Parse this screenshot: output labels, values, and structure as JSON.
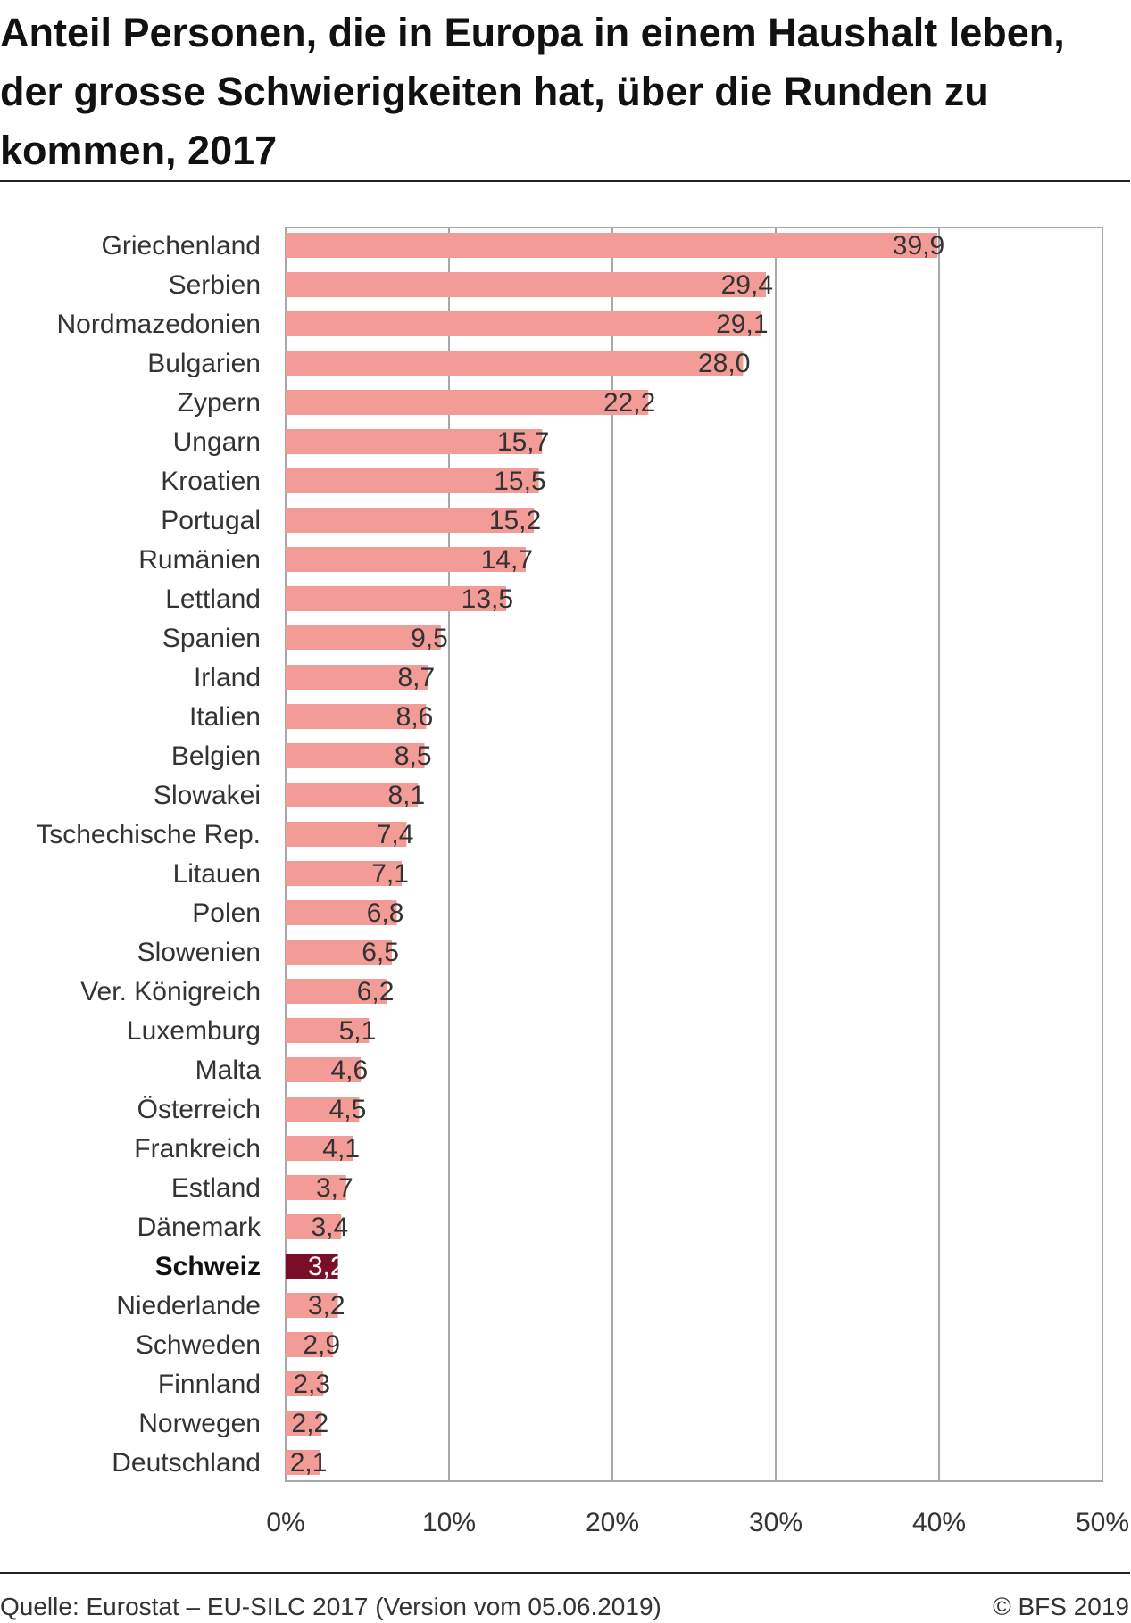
{
  "title": "Anteil Personen, die in Europa in einem Haushalt leben, der grosse Schwierigkeiten hat, über die Runden zu kommen, 2017",
  "footer": {
    "source": "Quelle: Eurostat – EU-SILC 2017 (Version vom 05.06.2019)",
    "copyright": "© BFS 2019"
  },
  "chart_data": {
    "type": "bar",
    "orientation": "horizontal",
    "categories": [
      "Griechenland",
      "Serbien",
      "Nordmazedonien",
      "Bulgarien",
      "Zypern",
      "Ungarn",
      "Kroatien",
      "Portugal",
      "Rumänien",
      "Lettland",
      "Spanien",
      "Irland",
      "Italien",
      "Belgien",
      "Slowakei",
      "Tschechische Rep.",
      "Litauen",
      "Polen",
      "Slowenien",
      "Ver. Königreich",
      "Luxemburg",
      "Malta",
      "Österreich",
      "Frankreich",
      "Estland",
      "Dänemark",
      "Schweiz",
      "Niederlande",
      "Schweden",
      "Finnland",
      "Norwegen",
      "Deutschland"
    ],
    "values": [
      39.9,
      29.4,
      29.1,
      28.0,
      22.2,
      15.7,
      15.5,
      15.2,
      14.7,
      13.5,
      9.5,
      8.7,
      8.6,
      8.5,
      8.1,
      7.4,
      7.1,
      6.8,
      6.5,
      6.2,
      5.1,
      4.6,
      4.5,
      4.1,
      3.7,
      3.4,
      3.2,
      3.2,
      2.9,
      2.3,
      2.2,
      2.1
    ],
    "value_labels": [
      "39,9",
      "29,4",
      "29,1",
      "28,0",
      "22,2",
      "15,7",
      "15,5",
      "15,2",
      "14,7",
      "13,5",
      "9,5",
      "8,7",
      "8,6",
      "8,5",
      "8,1",
      "7,4",
      "7,1",
      "6,8",
      "6,5",
      "6,2",
      "5,1",
      "4,6",
      "4,5",
      "4,1",
      "3,7",
      "3,4",
      "3,2",
      "3,2",
      "2,9",
      "2,3",
      "2,2",
      "2,1"
    ],
    "highlight": "Schweiz",
    "xlim": [
      0,
      50
    ],
    "xticks": [
      "0%",
      "10%",
      "20%",
      "30%",
      "40%",
      "50%"
    ],
    "xtick_values": [
      0,
      10,
      20,
      30,
      40,
      50
    ],
    "grid": true,
    "bar_color": "#f29b97",
    "highlight_color": "#7a0e26",
    "grid_color": "#a8a8a8"
  }
}
